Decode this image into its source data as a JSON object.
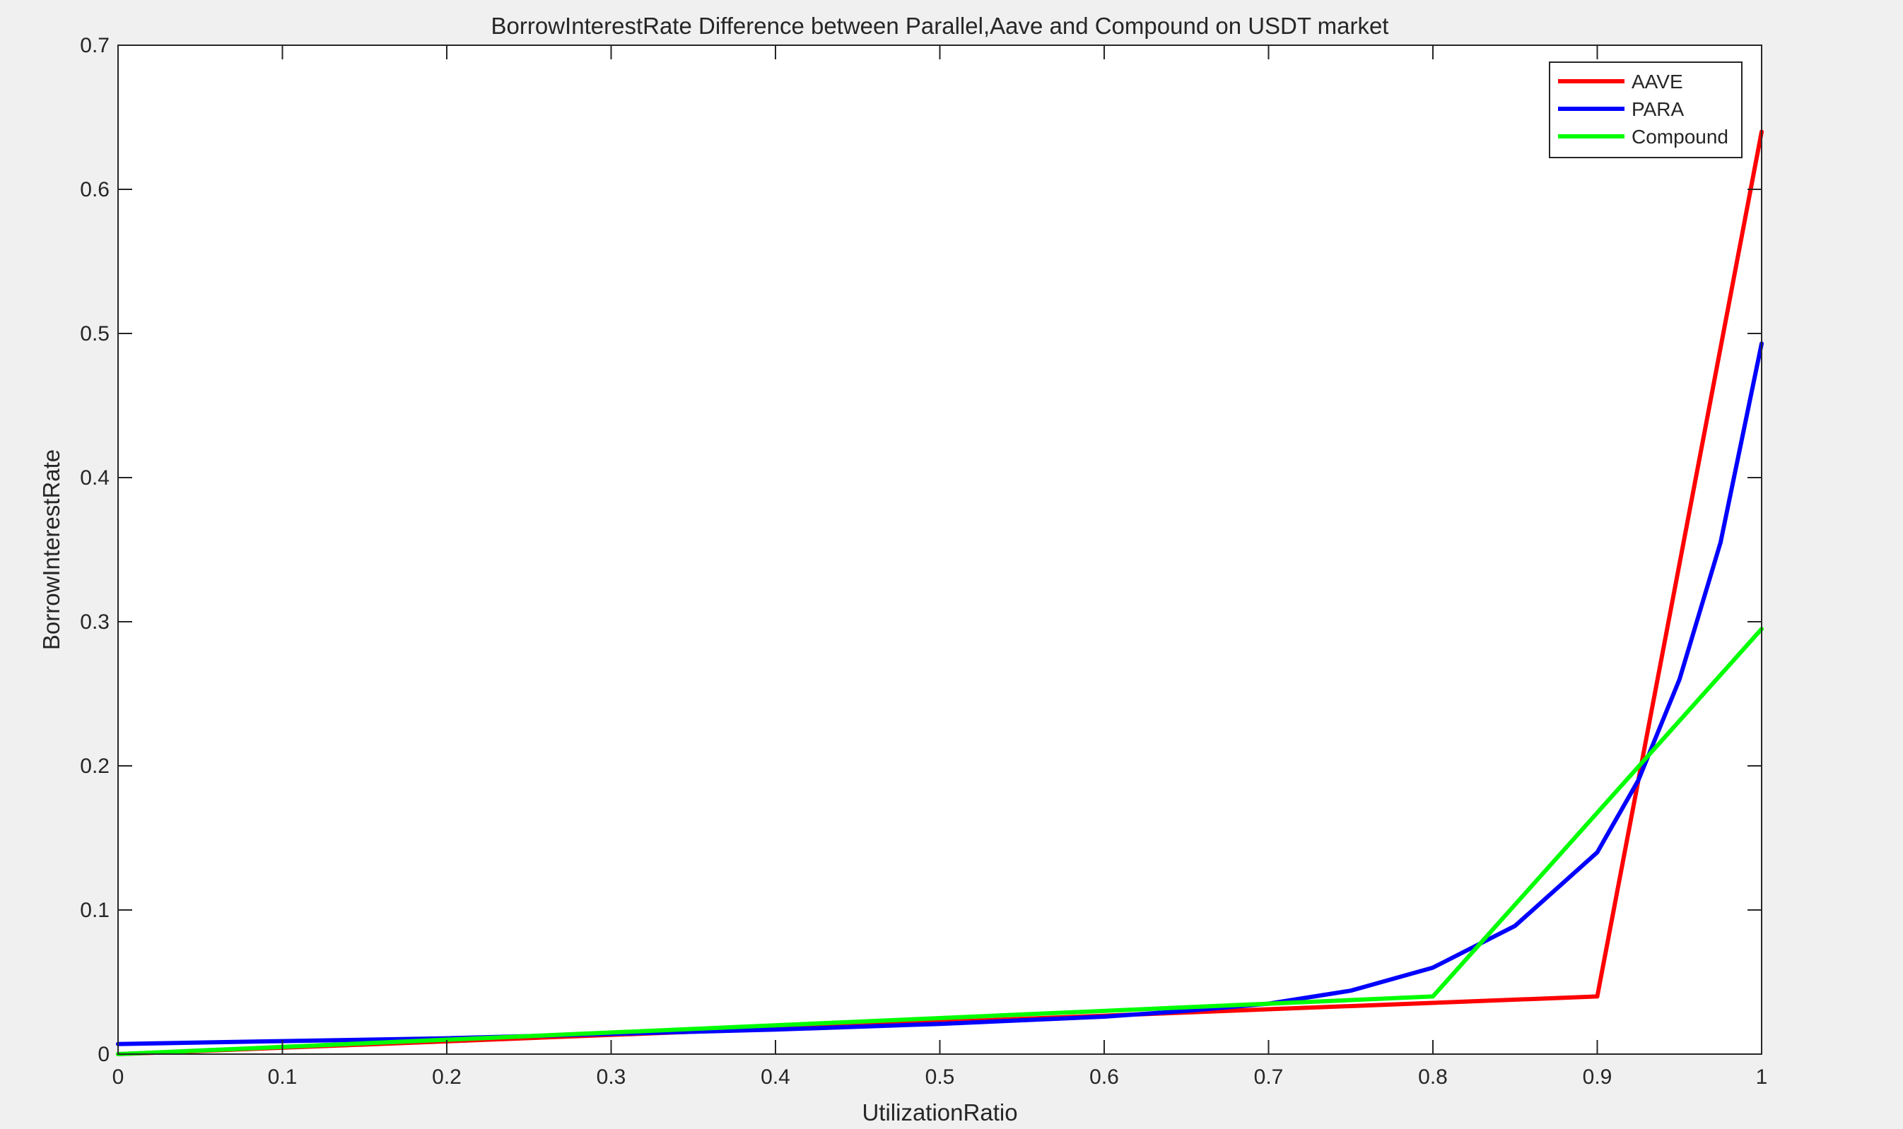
{
  "chart_data": {
    "type": "line",
    "title": "BorrowInterestRate Difference between Parallel,Aave and Compound on USDT market",
    "xlabel": "UtilizationRatio",
    "ylabel": "BorrowInterestRate",
    "xlim": [
      0,
      1
    ],
    "ylim": [
      0,
      0.7
    ],
    "xticks": [
      "0",
      "0.1",
      "0.2",
      "0.3",
      "0.4",
      "0.5",
      "0.6",
      "0.7",
      "0.8",
      "0.9",
      "1"
    ],
    "yticks": [
      "0",
      "0.1",
      "0.2",
      "0.3",
      "0.4",
      "0.5",
      "0.6",
      "0.7"
    ],
    "grid": false,
    "legend_position": "top-right",
    "series": [
      {
        "name": "AAVE",
        "color": "#ff0000",
        "x": [
          0,
          0.9,
          1.0
        ],
        "y": [
          0,
          0.04,
          0.64
        ]
      },
      {
        "name": "PARA",
        "color": "#0000ff",
        "x": [
          0,
          0.1,
          0.2,
          0.3,
          0.4,
          0.5,
          0.6,
          0.65,
          0.7,
          0.75,
          0.8,
          0.85,
          0.9,
          0.925,
          0.95,
          0.975,
          1.0
        ],
        "y": [
          0.007,
          0.009,
          0.011,
          0.014,
          0.017,
          0.021,
          0.026,
          0.03,
          0.035,
          0.044,
          0.06,
          0.089,
          0.14,
          0.19,
          0.26,
          0.355,
          0.493
        ]
      },
      {
        "name": "Compound",
        "color": "#00ff00",
        "x": [
          0,
          0.8,
          1.0
        ],
        "y": [
          0,
          0.04,
          0.295
        ]
      }
    ]
  }
}
